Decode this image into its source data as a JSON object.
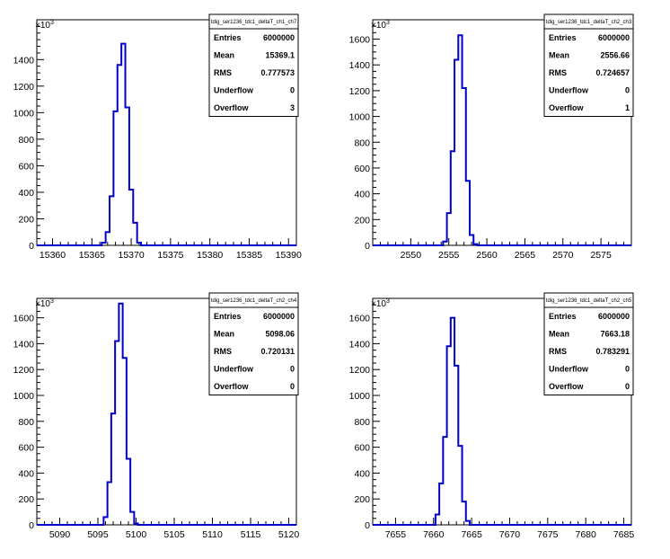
{
  "chart_data": [
    {
      "type": "bar",
      "title": "",
      "stats_name": "tdig_ser1236_tdc1_deltaT_ch1_ch7",
      "xlim": [
        15358,
        15391
      ],
      "ylim": [
        0,
        1700
      ],
      "x_ticks": [
        15360,
        15365,
        15370,
        15375,
        15380,
        15385,
        15390
      ],
      "y_ticks": [
        0,
        200,
        400,
        600,
        800,
        1000,
        1200,
        1400
      ],
      "y_exponent_base": "×10",
      "y_exponent": "3",
      "bin_width": 0.5,
      "bins": [
        {
          "x": 15366.5,
          "y": 20
        },
        {
          "x": 15367.0,
          "y": 100
        },
        {
          "x": 15367.5,
          "y": 370
        },
        {
          "x": 15368.0,
          "y": 1010
        },
        {
          "x": 15368.5,
          "y": 1360
        },
        {
          "x": 15369.0,
          "y": 1520
        },
        {
          "x": 15369.5,
          "y": 1040
        },
        {
          "x": 15370.0,
          "y": 420
        },
        {
          "x": 15370.5,
          "y": 170
        },
        {
          "x": 15371.0,
          "y": 20
        }
      ],
      "stats": [
        {
          "label": "Entries",
          "value": "6000000"
        },
        {
          "label": "Mean",
          "value": "15369.1"
        },
        {
          "label": "RMS",
          "value": "0.777573"
        },
        {
          "label": "Underflow",
          "value": "0"
        },
        {
          "label": "Overflow",
          "value": "3"
        }
      ]
    },
    {
      "type": "bar",
      "title": "",
      "stats_name": "tdig_ser1236_tdc1_deltaT_ch2_ch3",
      "xlim": [
        2545,
        2579
      ],
      "ylim": [
        0,
        1750
      ],
      "x_ticks": [
        2550,
        2555,
        2560,
        2565,
        2570,
        2575
      ],
      "y_ticks": [
        0,
        200,
        400,
        600,
        800,
        1000,
        1200,
        1400,
        1600
      ],
      "y_exponent_base": "×10",
      "y_exponent": "3",
      "bin_width": 0.5,
      "bins": [
        {
          "x": 2554.5,
          "y": 30
        },
        {
          "x": 2555.0,
          "y": 250
        },
        {
          "x": 2555.5,
          "y": 730
        },
        {
          "x": 2556.0,
          "y": 1440
        },
        {
          "x": 2556.5,
          "y": 1630
        },
        {
          "x": 2557.0,
          "y": 1220
        },
        {
          "x": 2557.5,
          "y": 500
        },
        {
          "x": 2558.0,
          "y": 80
        },
        {
          "x": 2558.5,
          "y": 10
        }
      ],
      "stats": [
        {
          "label": "Entries",
          "value": "6000000"
        },
        {
          "label": "Mean",
          "value": "2556.66"
        },
        {
          "label": "RMS",
          "value": "0.724657"
        },
        {
          "label": "Underflow",
          "value": "0"
        },
        {
          "label": "Overflow",
          "value": "1"
        }
      ]
    },
    {
      "type": "bar",
      "title": "",
      "stats_name": "tdig_ser1236_tdc1_deltaT_ch2_ch4",
      "xlim": [
        5087,
        5121
      ],
      "ylim": [
        0,
        1750
      ],
      "x_ticks": [
        5090,
        5095,
        5100,
        5105,
        5110,
        5115,
        5120
      ],
      "y_ticks": [
        0,
        200,
        400,
        600,
        800,
        1000,
        1200,
        1400,
        1600
      ],
      "y_exponent_base": "×10",
      "y_exponent": "3",
      "bin_width": 0.5,
      "bins": [
        {
          "x": 5096.0,
          "y": 60
        },
        {
          "x": 5096.5,
          "y": 330
        },
        {
          "x": 5097.0,
          "y": 860
        },
        {
          "x": 5097.5,
          "y": 1420
        },
        {
          "x": 5098.0,
          "y": 1710
        },
        {
          "x": 5098.5,
          "y": 1290
        },
        {
          "x": 5099.0,
          "y": 510
        },
        {
          "x": 5099.5,
          "y": 100
        },
        {
          "x": 5100.0,
          "y": 10
        }
      ],
      "stats": [
        {
          "label": "Entries",
          "value": "6000000"
        },
        {
          "label": "Mean",
          "value": "5098.06"
        },
        {
          "label": "RMS",
          "value": "0.720131"
        },
        {
          "label": "Underflow",
          "value": "0"
        },
        {
          "label": "Overflow",
          "value": "0"
        }
      ]
    },
    {
      "type": "bar",
      "title": "",
      "stats_name": "tdig_ser1236_tdc1_deltaT_ch2_ch5",
      "xlim": [
        7652,
        7686
      ],
      "ylim": [
        0,
        1750
      ],
      "x_ticks": [
        7655,
        7660,
        7665,
        7670,
        7675,
        7680,
        7685
      ],
      "y_ticks": [
        0,
        200,
        400,
        600,
        800,
        1000,
        1200,
        1400,
        1600
      ],
      "y_exponent_base": "×10",
      "y_exponent": "3",
      "bin_width": 0.5,
      "bins": [
        {
          "x": 7660.5,
          "y": 80
        },
        {
          "x": 7661.0,
          "y": 320
        },
        {
          "x": 7661.5,
          "y": 680
        },
        {
          "x": 7662.0,
          "y": 1380
        },
        {
          "x": 7662.5,
          "y": 1600
        },
        {
          "x": 7663.0,
          "y": 1230
        },
        {
          "x": 7663.5,
          "y": 610
        },
        {
          "x": 7664.0,
          "y": 180
        },
        {
          "x": 7664.5,
          "y": 30
        }
      ],
      "stats": [
        {
          "label": "Entries",
          "value": "6000000"
        },
        {
          "label": "Mean",
          "value": "7663.18"
        },
        {
          "label": "RMS",
          "value": "0.783291"
        },
        {
          "label": "Underflow",
          "value": "0"
        },
        {
          "label": "Overflow",
          "value": "0"
        }
      ]
    }
  ],
  "colors": {
    "histogram_line": "#0000cc",
    "axis": "#000000",
    "background": "#ffffff"
  }
}
